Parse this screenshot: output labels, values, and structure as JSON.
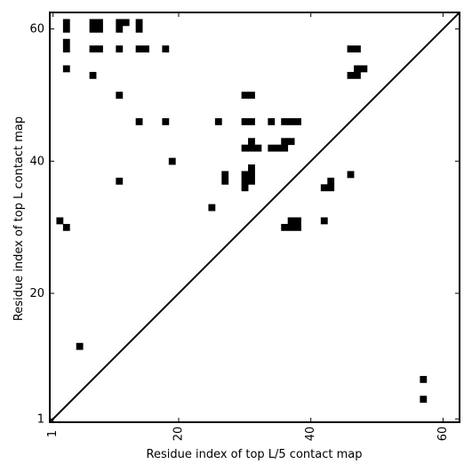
{
  "chart_data": {
    "type": "heatmap",
    "title": "",
    "xlabel": "Residue index of top L/5 contact map",
    "ylabel": "Residue index of top L contact map",
    "xlim": [
      0.5,
      62.5
    ],
    "ylim": [
      0.5,
      62.5
    ],
    "xticks": [
      {
        "value": 1,
        "label": "1"
      },
      {
        "value": 20,
        "label": "20"
      },
      {
        "value": 40,
        "label": "40"
      },
      {
        "value": 60,
        "label": "60"
      }
    ],
    "yticks": [
      {
        "value": 1,
        "label": "1"
      },
      {
        "value": 20,
        "label": "20"
      },
      {
        "value": 40,
        "label": "40"
      },
      {
        "value": 60,
        "label": "60"
      }
    ],
    "cell_color": "#000000",
    "background": "#ffffff",
    "diagonal": {
      "from": [
        0.5,
        0.5
      ],
      "to": [
        62.5,
        62.5
      ]
    },
    "upper_triangle_contacts": [
      [
        3,
        61
      ],
      [
        3,
        60
      ],
      [
        3,
        58
      ],
      [
        3,
        57
      ],
      [
        3,
        54
      ],
      [
        7,
        61
      ],
      [
        8,
        61
      ],
      [
        7,
        60
      ],
      [
        8,
        60
      ],
      [
        7,
        57
      ],
      [
        8,
        57
      ],
      [
        7,
        53
      ],
      [
        11,
        61
      ],
      [
        12,
        61
      ],
      [
        11,
        60
      ],
      [
        11,
        57
      ],
      [
        11,
        50
      ],
      [
        11,
        37
      ],
      [
        14,
        61
      ],
      [
        14,
        60
      ],
      [
        14,
        57
      ],
      [
        15,
        57
      ],
      [
        14,
        46
      ],
      [
        18,
        57
      ],
      [
        18,
        46
      ],
      [
        19,
        40
      ],
      [
        26,
        46
      ],
      [
        27,
        38
      ],
      [
        27,
        37
      ],
      [
        25,
        33
      ],
      [
        30,
        50
      ],
      [
        31,
        50
      ],
      [
        30,
        46
      ],
      [
        31,
        46
      ],
      [
        31,
        43
      ],
      [
        30,
        42
      ],
      [
        31,
        42
      ],
      [
        32,
        42
      ],
      [
        31,
        39
      ],
      [
        30,
        38
      ],
      [
        31,
        38
      ],
      [
        30,
        37
      ],
      [
        31,
        37
      ],
      [
        30,
        36
      ],
      [
        34,
        46
      ],
      [
        34,
        42
      ],
      [
        35,
        42
      ],
      [
        36,
        42
      ],
      [
        36,
        46
      ],
      [
        37,
        46
      ],
      [
        38,
        46
      ],
      [
        36,
        43
      ],
      [
        37,
        43
      ],
      [
        37,
        31
      ],
      [
        38,
        31
      ],
      [
        36,
        30
      ],
      [
        37,
        30
      ],
      [
        38,
        30
      ],
      [
        42,
        36
      ],
      [
        43,
        36
      ],
      [
        43,
        37
      ],
      [
        42,
        31
      ],
      [
        46,
        57
      ],
      [
        47,
        57
      ],
      [
        46,
        53
      ],
      [
        47,
        53
      ],
      [
        47,
        54
      ],
      [
        48,
        54
      ],
      [
        46,
        38
      ]
    ],
    "lower_triangle_contacts": [
      [
        2,
        31
      ],
      [
        3,
        30
      ],
      [
        5,
        12
      ],
      [
        57,
        7
      ],
      [
        57,
        4
      ]
    ]
  }
}
